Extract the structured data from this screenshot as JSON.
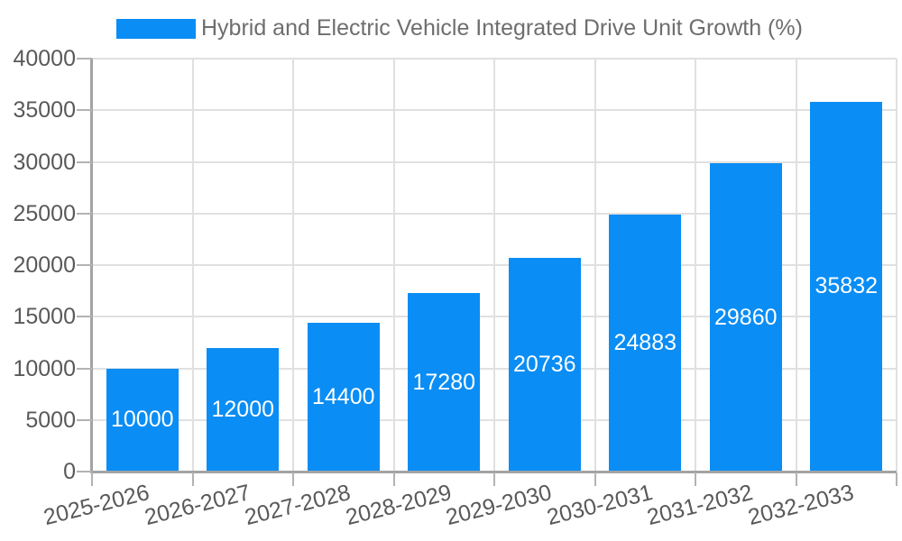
{
  "legend": {
    "label": "Hybrid and Electric Vehicle Integrated Drive Unit Growth (%)"
  },
  "chart_data": {
    "type": "bar",
    "title": "Hybrid and Electric Vehicle Integrated Drive Unit Growth (%)",
    "categories": [
      "2025-2026",
      "2026-2027",
      "2027-2028",
      "2028-2029",
      "2029-2030",
      "2030-2031",
      "2031-2032",
      "2032-2033"
    ],
    "series": [
      {
        "name": "Hybrid and Electric Vehicle Integrated Drive Unit Growth (%)",
        "values": [
          10000,
          12000,
          14400,
          17280,
          20736,
          24883,
          29860,
          35832
        ]
      }
    ],
    "data_labels": [
      10000,
      12000,
      14400,
      17280,
      20736,
      24883,
      29860,
      35832
    ],
    "xlabel": "",
    "ylabel": "",
    "ylim": [
      0,
      40000
    ],
    "yticks": [
      0,
      5000,
      10000,
      15000,
      20000,
      25000,
      30000,
      35000,
      40000
    ],
    "grid": true,
    "legend_position": "top-left",
    "colors": {
      "bar": "#0a8df4",
      "bar_label_text": "#ffffff",
      "tick_text": "#595959",
      "legend_text": "#6e6e6e",
      "gridline": "#e0e0e0",
      "axis_line": "#a3a3a3",
      "tick_mark": "#b3b3b3",
      "background": "#ffffff"
    }
  }
}
